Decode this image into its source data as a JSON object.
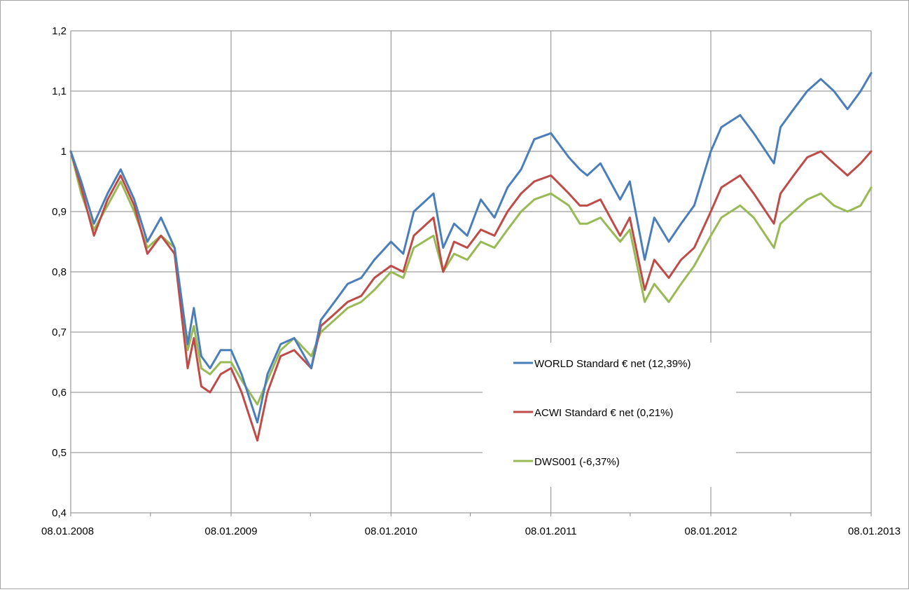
{
  "chart_data": {
    "type": "line",
    "title": "",
    "xlabel": "",
    "ylabel": "",
    "ylim": [
      0.4,
      1.2
    ],
    "y_ticks": [
      "1,2",
      "1,1",
      "1",
      "0,9",
      "0,8",
      "0,7",
      "0,6",
      "0,5",
      "0,4"
    ],
    "y_tick_values": [
      1.2,
      1.1,
      1.0,
      0.9,
      0.8,
      0.7,
      0.6,
      0.5,
      0.4
    ],
    "x_ticks": [
      "08.01.2008",
      "08.01.2009",
      "08.01.2010",
      "08.01.2011",
      "08.01.2012",
      "08.01.2013"
    ],
    "xlim": [
      "2008-01-08",
      "2013-01-08"
    ],
    "grid": true,
    "legend_position": "inside-lower-right",
    "x_dates": [
      "2008-01-08",
      "2008-02-01",
      "2008-03-01",
      "2008-04-01",
      "2008-05-01",
      "2008-06-01",
      "2008-07-01",
      "2008-08-01",
      "2008-09-01",
      "2008-10-01",
      "2008-10-15",
      "2008-11-01",
      "2008-11-21",
      "2008-12-15",
      "2009-01-08",
      "2009-02-01",
      "2009-03-09",
      "2009-04-01",
      "2009-05-01",
      "2009-06-01",
      "2009-07-10",
      "2009-08-01",
      "2009-09-01",
      "2009-10-01",
      "2009-11-01",
      "2009-12-01",
      "2010-01-08",
      "2010-02-05",
      "2010-03-01",
      "2010-04-15",
      "2010-05-07",
      "2010-06-01",
      "2010-07-01",
      "2010-08-01",
      "2010-09-01",
      "2010-10-01",
      "2010-11-01",
      "2010-12-01",
      "2011-01-08",
      "2011-02-18",
      "2011-03-15",
      "2011-04-01",
      "2011-05-01",
      "2011-06-15",
      "2011-07-07",
      "2011-08-10",
      "2011-09-01",
      "2011-10-04",
      "2011-11-01",
      "2011-12-01",
      "2012-01-08",
      "2012-02-01",
      "2012-03-15",
      "2012-04-15",
      "2012-05-31",
      "2012-06-15",
      "2012-07-15",
      "2012-08-15",
      "2012-09-15",
      "2012-10-15",
      "2012-11-15",
      "2012-12-15",
      "2013-01-08"
    ],
    "series": [
      {
        "name": "WORLD Standard € net (12,39%)",
        "color": "#4a7ebb",
        "values": [
          1.0,
          0.95,
          0.88,
          0.93,
          0.97,
          0.92,
          0.85,
          0.89,
          0.84,
          0.68,
          0.74,
          0.66,
          0.64,
          0.67,
          0.67,
          0.63,
          0.55,
          0.63,
          0.68,
          0.69,
          0.64,
          0.72,
          0.75,
          0.78,
          0.79,
          0.82,
          0.85,
          0.83,
          0.9,
          0.93,
          0.84,
          0.88,
          0.86,
          0.92,
          0.89,
          0.94,
          0.97,
          1.02,
          1.03,
          0.99,
          0.97,
          0.96,
          0.98,
          0.92,
          0.95,
          0.82,
          0.89,
          0.85,
          0.88,
          0.91,
          1.0,
          1.04,
          1.06,
          1.03,
          0.98,
          1.04,
          1.07,
          1.1,
          1.12,
          1.1,
          1.07,
          1.1,
          1.13
        ]
      },
      {
        "name": "ACWI Standard € net (0,21%)",
        "color": "#be4b48",
        "values": [
          1.0,
          0.94,
          0.86,
          0.92,
          0.96,
          0.91,
          0.83,
          0.86,
          0.83,
          0.64,
          0.69,
          0.61,
          0.6,
          0.63,
          0.64,
          0.6,
          0.52,
          0.6,
          0.66,
          0.67,
          0.64,
          0.71,
          0.73,
          0.75,
          0.76,
          0.79,
          0.81,
          0.8,
          0.86,
          0.89,
          0.8,
          0.85,
          0.84,
          0.87,
          0.86,
          0.9,
          0.93,
          0.95,
          0.96,
          0.93,
          0.91,
          0.91,
          0.92,
          0.86,
          0.89,
          0.77,
          0.82,
          0.79,
          0.82,
          0.84,
          0.9,
          0.94,
          0.96,
          0.93,
          0.88,
          0.93,
          0.96,
          0.99,
          1.0,
          0.98,
          0.96,
          0.98,
          1.0
        ]
      },
      {
        "name": "DWS001 (-6,37%)",
        "color": "#98b954",
        "values": [
          1.0,
          0.93,
          0.87,
          0.91,
          0.95,
          0.9,
          0.84,
          0.86,
          0.84,
          0.67,
          0.71,
          0.64,
          0.63,
          0.65,
          0.65,
          0.62,
          0.58,
          0.62,
          0.67,
          0.69,
          0.66,
          0.7,
          0.72,
          0.74,
          0.75,
          0.77,
          0.8,
          0.79,
          0.84,
          0.86,
          0.8,
          0.83,
          0.82,
          0.85,
          0.84,
          0.87,
          0.9,
          0.92,
          0.93,
          0.91,
          0.88,
          0.88,
          0.89,
          0.85,
          0.87,
          0.75,
          0.78,
          0.75,
          0.78,
          0.81,
          0.86,
          0.89,
          0.91,
          0.89,
          0.84,
          0.88,
          0.9,
          0.92,
          0.93,
          0.91,
          0.9,
          0.91,
          0.94
        ]
      }
    ]
  },
  "legend": {
    "items": [
      "WORLD Standard € net (12,39%)",
      "ACWI Standard € net (0,21%)",
      "DWS001 (-6,37%)"
    ]
  }
}
